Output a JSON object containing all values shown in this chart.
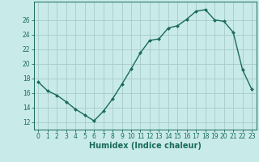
{
  "x": [
    0,
    1,
    2,
    3,
    4,
    5,
    6,
    7,
    8,
    9,
    10,
    11,
    12,
    13,
    14,
    15,
    16,
    17,
    18,
    19,
    20,
    21,
    22,
    23
  ],
  "y": [
    17.5,
    16.3,
    15.7,
    14.8,
    13.8,
    13.0,
    12.2,
    13.5,
    15.2,
    17.2,
    19.3,
    21.5,
    23.2,
    23.4,
    24.9,
    25.2,
    26.1,
    27.2,
    27.4,
    26.0,
    25.8,
    24.3,
    19.2,
    16.5
  ],
  "line_color": "#1a6b5a",
  "marker": "D",
  "marker_size": 2.0,
  "bg_color": "#c8eae8",
  "grid_color": "#a8ccca",
  "tick_color": "#1a6b5a",
  "label_color": "#1a6b5a",
  "xlabel": "Humidex (Indice chaleur)",
  "xlabel_fontsize": 7,
  "ylabel_ticks": [
    12,
    14,
    16,
    18,
    20,
    22,
    24,
    26
  ],
  "ylim": [
    11.0,
    28.5
  ],
  "xlim": [
    -0.5,
    23.5
  ],
  "xticks": [
    0,
    1,
    2,
    3,
    4,
    5,
    6,
    7,
    8,
    9,
    10,
    11,
    12,
    13,
    14,
    15,
    16,
    17,
    18,
    19,
    20,
    21,
    22,
    23
  ],
  "tick_fontsize": 5.5,
  "line_width": 1.0
}
